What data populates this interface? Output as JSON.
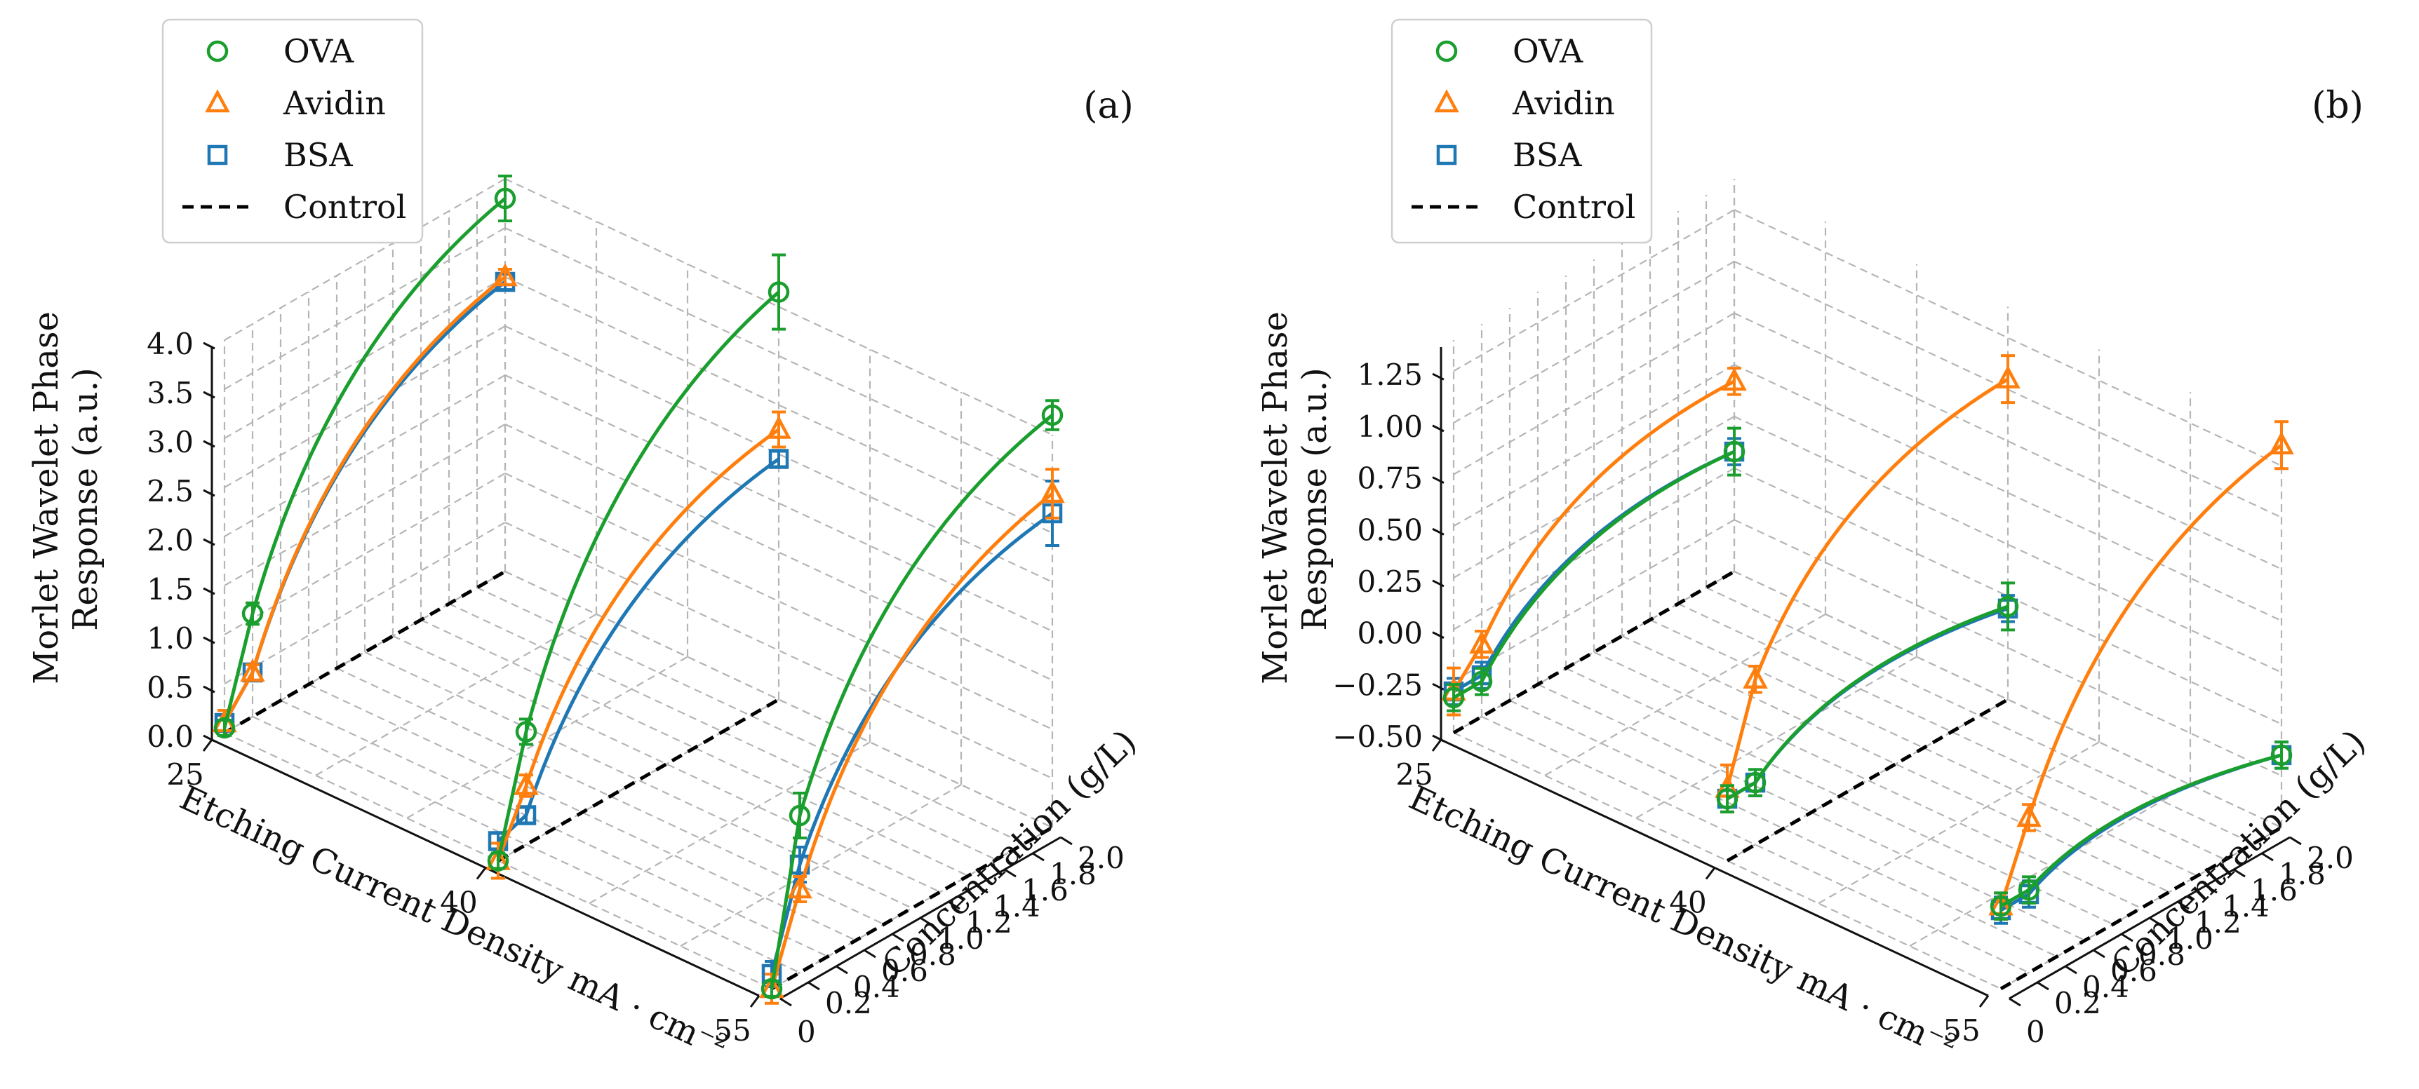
{
  "chart_data": [
    {
      "type": "line3d",
      "panel_label": "(a)",
      "zlabel": [
        "Morlet Wavelet Phase",
        "Response (a.u.)"
      ],
      "xlabel": "Etching Current Density mA · cm⁻²",
      "ylabel": "Concentration (g/L)",
      "x_ticks": [
        "25",
        "40",
        "55"
      ],
      "y_ticks": [
        "0",
        "0.2",
        "0.4",
        "0.6",
        "0.8",
        "1.0",
        "1.2",
        "1.4",
        "1.6",
        "1.8",
        "2.0"
      ],
      "z_ticks": [
        "0.0",
        "0.5",
        "1.0",
        "1.5",
        "2.0",
        "2.5",
        "3.0",
        "3.5",
        "4.0"
      ],
      "x_categories": [
        25,
        40,
        55
      ],
      "zlim": [
        0,
        4.0
      ],
      "ylim": [
        0,
        2.0
      ],
      "legend": [
        "OVA",
        "Avidin",
        "BSA",
        "Control"
      ],
      "series": [
        {
          "name": "OVA",
          "color": "#1a9e2e",
          "marker": "circle",
          "points": [
            {
              "x": 25,
              "conc": [
                0,
                0.2,
                2.0
              ],
              "resp": [
                0.05,
                1.05,
                3.8
              ],
              "err": [
                0.05,
                0.08,
                0.2
              ]
            },
            {
              "x": 40,
              "conc": [
                0,
                0.2,
                2.0
              ],
              "resp": [
                0.0,
                1.15,
                4.15
              ],
              "err": [
                0.05,
                0.1,
                0.35
              ]
            },
            {
              "x": 55,
              "conc": [
                0,
                0.2,
                2.0
              ],
              "resp": [
                0.0,
                1.6,
                4.2
              ],
              "err": [
                0.05,
                0.2,
                0.12
              ]
            }
          ]
        },
        {
          "name": "Avidin",
          "color": "#ff7f0e",
          "marker": "triangle",
          "points": [
            {
              "x": 25,
              "conc": [
                0,
                0.2,
                2.0
              ],
              "resp": [
                0.1,
                0.45,
                3.0
              ],
              "err": [
                0.1,
                0.05,
                0.05
              ]
            },
            {
              "x": 40,
              "conc": [
                0,
                0.2,
                2.0
              ],
              "resp": [
                0.0,
                0.6,
                2.75
              ],
              "err": [
                0.15,
                0.08,
                0.15
              ]
            },
            {
              "x": 55,
              "conc": [
                0,
                0.2,
                2.0
              ],
              "resp": [
                0.0,
                0.85,
                3.4
              ],
              "err": [
                0.12,
                0.1,
                0.22
              ]
            }
          ]
        },
        {
          "name": "BSA",
          "color": "#1f77b4",
          "marker": "square",
          "points": [
            {
              "x": 25,
              "conc": [
                0,
                0.2,
                2.0
              ],
              "resp": [
                0.1,
                0.45,
                2.95
              ],
              "err": [
                0.05,
                0.05,
                0.05
              ]
            },
            {
              "x": 40,
              "conc": [
                0,
                0.2,
                2.0
              ],
              "resp": [
                0.2,
                0.3,
                2.45
              ],
              "err": [
                0.05,
                0.05,
                0.05
              ]
            },
            {
              "x": 55,
              "conc": [
                0,
                0.2,
                2.0
              ],
              "resp": [
                0.15,
                1.1,
                3.2
              ],
              "err": [
                0.1,
                0.15,
                0.3
              ]
            }
          ]
        },
        {
          "name": "Control",
          "color": "#000000",
          "marker": "none",
          "points": [
            {
              "x": 25,
              "conc": [
                0,
                2.0
              ],
              "resp": [
                0,
                0
              ]
            },
            {
              "x": 40,
              "conc": [
                0,
                2.0
              ],
              "resp": [
                0,
                0
              ]
            },
            {
              "x": 55,
              "conc": [
                0,
                2.0
              ],
              "resp": [
                0,
                0
              ]
            }
          ]
        }
      ]
    },
    {
      "type": "line3d",
      "panel_label": "(b)",
      "zlabel": [
        "Morlet Wavelet Phase",
        "Response (a.u.)"
      ],
      "xlabel": "Etching Current Density mA · cm⁻²",
      "ylabel": "Concentration (g/L)",
      "x_ticks": [
        "25",
        "40",
        "55"
      ],
      "y_ticks": [
        "0",
        "0.2",
        "0.4",
        "0.6",
        "0.8",
        "1.0",
        "1.2",
        "1.4",
        "1.6",
        "1.8",
        "2.0"
      ],
      "z_ticks": [
        "−0.50",
        "−0.25",
        "0.00",
        "0.25",
        "0.50",
        "0.75",
        "1.00",
        "1.25"
      ],
      "x_categories": [
        25,
        40,
        55
      ],
      "zlim": [
        -0.5,
        1.4
      ],
      "ylim": [
        0,
        2.0
      ],
      "legend": [
        "OVA",
        "Avidin",
        "BSA",
        "Control"
      ],
      "series": [
        {
          "name": "OVA",
          "color": "#1a9e2e",
          "marker": "circle",
          "points": [
            {
              "x": 25,
              "conc": [
                0,
                0.2,
                2.0
              ],
              "resp": [
                -0.33,
                -0.33,
                0.08
              ],
              "err": [
                0.05,
                0.05,
                0.1
              ]
            },
            {
              "x": 40,
              "conc": [
                0,
                0.2,
                2.0
              ],
              "resp": [
                -0.2,
                -0.2,
                -0.05
              ],
              "err": [
                0.05,
                0.05,
                0.1
              ]
            },
            {
              "x": 55,
              "conc": [
                0,
                0.2,
                2.0
              ],
              "resp": [
                -0.1,
                -0.1,
                -0.15
              ],
              "err": [
                0.05,
                0.05,
                0.05
              ]
            }
          ]
        },
        {
          "name": "Avidin",
          "color": "#ff7f0e",
          "marker": "triangle",
          "points": [
            {
              "x": 25,
              "conc": [
                0,
                0.2,
                2.0
              ],
              "resp": [
                -0.3,
                -0.15,
                0.42
              ],
              "err": [
                0.1,
                0.05,
                0.05
              ]
            },
            {
              "x": 40,
              "conc": [
                0,
                0.2,
                2.0
              ],
              "resp": [
                -0.15,
                0.3,
                1.05
              ],
              "err": [
                0.1,
                0.05,
                0.1
              ]
            },
            {
              "x": 55,
              "conc": [
                0,
                0.2,
                2.0
              ],
              "resp": [
                -0.1,
                0.25,
                1.35
              ],
              "err": [
                0.05,
                0.05,
                0.1
              ]
            }
          ]
        },
        {
          "name": "BSA",
          "color": "#1f77b4",
          "marker": "square",
          "points": [
            {
              "x": 25,
              "conc": [
                0,
                0.2,
                2.0
              ],
              "resp": [
                -0.3,
                -0.3,
                0.08
              ],
              "err": [
                0.05,
                0.05,
                0.05
              ]
            },
            {
              "x": 40,
              "conc": [
                0,
                0.2,
                2.0
              ],
              "resp": [
                -0.2,
                -0.2,
                -0.06
              ],
              "err": [
                0.05,
                0.05,
                0.05
              ]
            },
            {
              "x": 55,
              "conc": [
                0,
                0.2,
                2.0
              ],
              "resp": [
                -0.12,
                -0.12,
                -0.15
              ],
              "err": [
                0.05,
                0.05,
                0.05
              ]
            }
          ]
        },
        {
          "name": "Control",
          "color": "#000000",
          "marker": "none",
          "points": [
            {
              "x": 25,
              "conc": [
                0,
                2.0
              ],
              "resp": [
                -0.5,
                -0.5
              ]
            },
            {
              "x": 40,
              "conc": [
                0,
                2.0
              ],
              "resp": [
                -0.5,
                -0.5
              ]
            },
            {
              "x": 55,
              "conc": [
                0,
                2.0
              ],
              "resp": [
                -0.5,
                -0.5
              ]
            }
          ]
        }
      ]
    }
  ]
}
